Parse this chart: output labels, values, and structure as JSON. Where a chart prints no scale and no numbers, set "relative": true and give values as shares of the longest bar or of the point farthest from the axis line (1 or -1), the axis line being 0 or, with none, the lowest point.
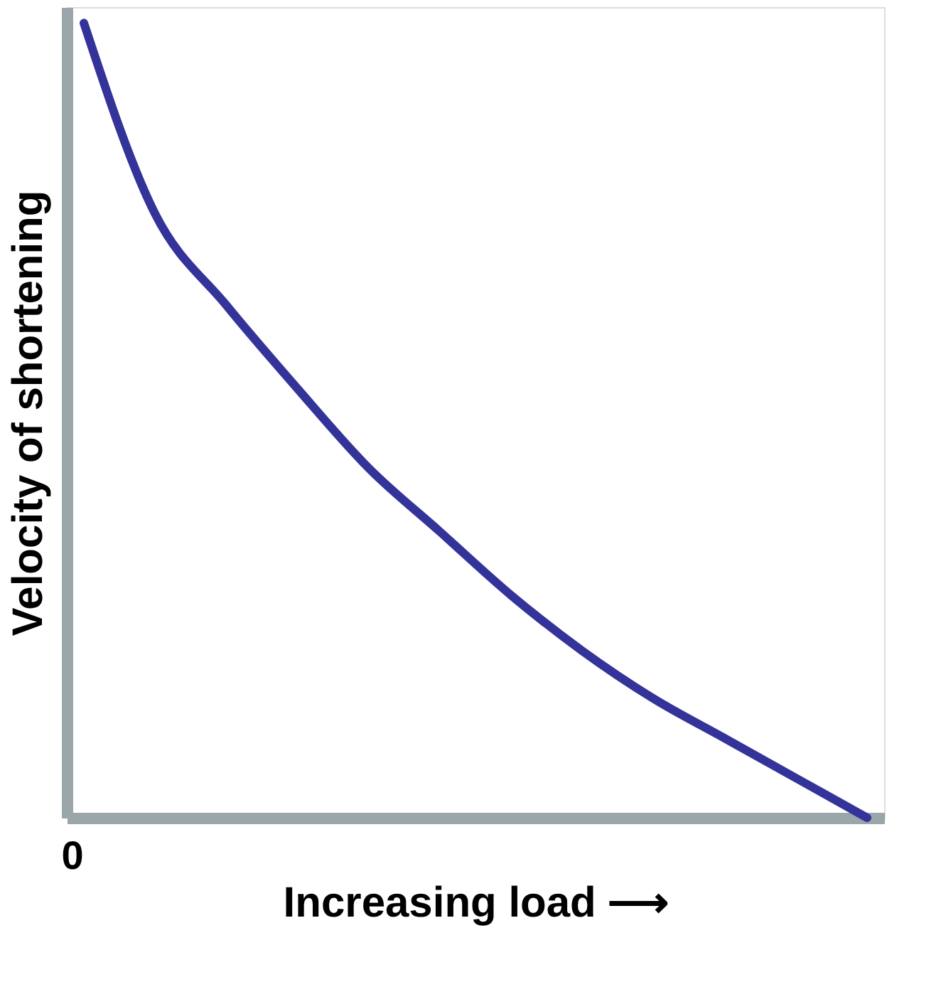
{
  "chart_data": {
    "type": "line",
    "relative": true,
    "xlabel": "Increasing load ⟶",
    "ylabel": "Velocity of shortening",
    "categories": [
      null,
      null,
      null,
      null,
      null,
      null,
      null,
      null,
      null,
      null,
      null,
      null
    ],
    "series": [
      {
        "color": "#33339a",
        "values": [
          1,
          0.76,
          0.645,
          0.54,
          0.44,
          0.36,
          0.28,
          0.21,
          0.15,
          0.1,
          0.05,
          0
        ]
      }
    ],
    "annotations": [
      "0"
    ],
    "grid": false,
    "legend": false,
    "marker": "none",
    "line_style": "solid"
  }
}
